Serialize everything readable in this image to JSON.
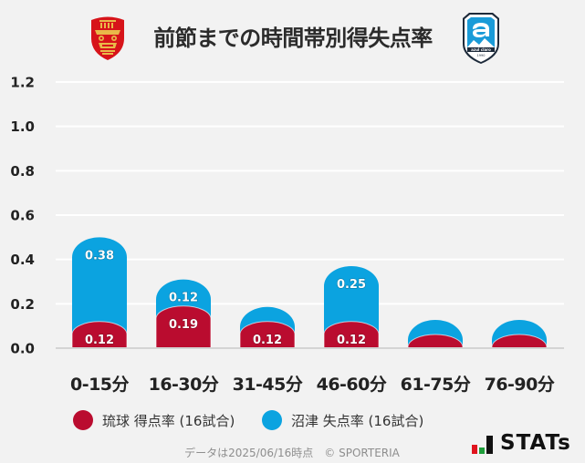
{
  "header": {
    "title": "前節までの時間帯別得失点率",
    "home_logo": {
      "icon": "ryukyu-crest-icon",
      "color": "#D7141A",
      "accent": "#E9B949"
    },
    "away_logo": {
      "icon": "azul-claro-crest-icon",
      "text": "azul claro",
      "year": "1990",
      "color": "#1A9BD8"
    }
  },
  "legend": {
    "home": {
      "label": "琉球 得点率 (16試合)",
      "color": "#BA0C2F"
    },
    "away": {
      "label": "沼津 失点率 (16試合)",
      "color": "#0BA3E0"
    }
  },
  "footer": {
    "note": "データは2025/06/16時点　© SPORTERIA",
    "brand": "STATs",
    "brand_bar_colors": [
      "#E0141E",
      "#1E9E3A",
      "#111111"
    ]
  },
  "chart_data": {
    "type": "bar",
    "stacked": true,
    "title": "前節までの時間帯別得失点率",
    "xlabel": "",
    "ylabel": "",
    "categories": [
      "0-15分",
      "16-30分",
      "31-45分",
      "46-60分",
      "61-75分",
      "76-90分"
    ],
    "series": [
      {
        "name": "琉球 得点率 (16試合)",
        "color": "#BA0C2F",
        "values": [
          0.12,
          0.19,
          0.12,
          0.12,
          0.0,
          0.0
        ]
      },
      {
        "name": "沼津 失点率 (16試合)",
        "color": "#0BA3E0",
        "values": [
          0.38,
          0.12,
          0.0,
          0.25,
          0.0,
          0.0
        ]
      }
    ],
    "ylim": [
      0,
      1.2
    ],
    "yticks": [
      0.0,
      0.2,
      0.4,
      0.6,
      0.8,
      1.0,
      1.2
    ],
    "grid": true,
    "legend_position": "bottom",
    "data_labels": true
  }
}
